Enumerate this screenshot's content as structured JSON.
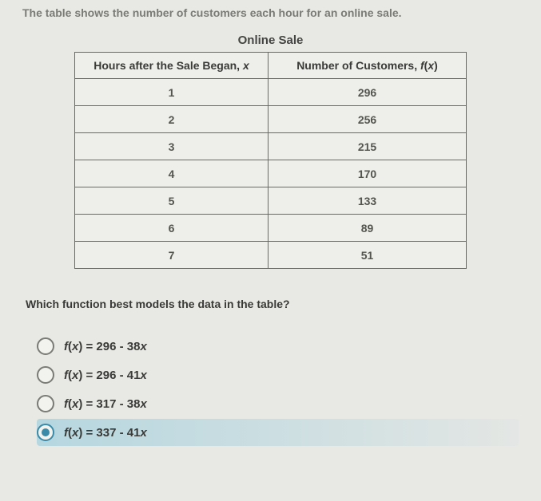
{
  "intro": "The table shows the number of customers each hour for an online sale.",
  "table": {
    "title": "Online Sale",
    "header_x": "Hours after the Sale Began, x",
    "header_fx": "Number of Customers, f(x)",
    "rows": [
      {
        "x": "1",
        "fx": "296"
      },
      {
        "x": "2",
        "fx": "256"
      },
      {
        "x": "3",
        "fx": "215"
      },
      {
        "x": "4",
        "fx": "170"
      },
      {
        "x": "5",
        "fx": "133"
      },
      {
        "x": "6",
        "fx": "89"
      },
      {
        "x": "7",
        "fx": "51"
      }
    ]
  },
  "question": "Which function best models the data in the table?",
  "options": [
    {
      "label": "f(x) = 296 - 38x",
      "selected": false
    },
    {
      "label": "f(x) = 296 - 41x",
      "selected": false
    },
    {
      "label": "f(x) = 317 - 38x",
      "selected": false
    },
    {
      "label": "f(x) = 337 - 41x",
      "selected": true
    }
  ],
  "colors": {
    "page_bg": "#e8e8e4",
    "text_muted": "#7a7a76",
    "text_main": "#3a3a38",
    "border": "#6a6a66",
    "highlight": "#8cc8dc",
    "radio_selected": "#3a8aa8"
  }
}
